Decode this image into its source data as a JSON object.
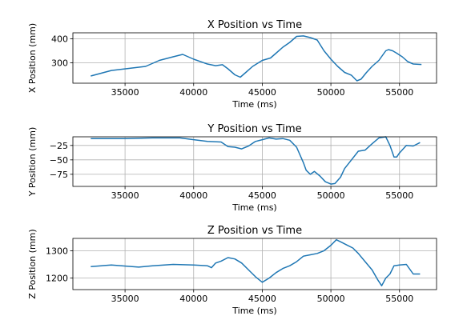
{
  "chart_data": [
    {
      "type": "line",
      "title": "X Position vs Time",
      "xlabel": "Time (ms)",
      "ylabel": "X Position (mm)",
      "xlim": [
        31200,
        57700
      ],
      "ylim": [
        215,
        425
      ],
      "grid": true,
      "xticks": [
        35000,
        40000,
        45000,
        50000,
        55000
      ],
      "yticks": [
        300,
        400
      ],
      "line_color": "#1f77b4",
      "series": [
        {
          "x": [
            32500,
            34000,
            36500,
            37500,
            38500,
            39200,
            40000,
            41000,
            41600,
            42100,
            42500,
            43000,
            43400,
            43800,
            44300,
            45000,
            45600,
            46000,
            46500,
            47000,
            47500,
            48000,
            48500,
            49000,
            49500,
            50000,
            50500,
            51000,
            51500,
            51900,
            52200,
            52600,
            53000,
            53500,
            54000,
            54200,
            54500,
            54800,
            55200,
            55600,
            56000,
            56600
          ],
          "y": [
            245,
            268,
            285,
            310,
            325,
            335,
            315,
            295,
            288,
            292,
            275,
            250,
            240,
            260,
            285,
            310,
            320,
            340,
            365,
            385,
            410,
            412,
            405,
            395,
            350,
            315,
            285,
            260,
            248,
            225,
            232,
            260,
            285,
            310,
            350,
            355,
            350,
            340,
            325,
            305,
            295,
            293
          ]
        }
      ]
    },
    {
      "type": "line",
      "title": "Y Position vs Time",
      "xlabel": "Time (ms)",
      "ylabel": "Y Position (mm)",
      "xlim": [
        31200,
        57700
      ],
      "ylim": [
        -96,
        -10
      ],
      "grid": true,
      "xticks": [
        35000,
        40000,
        45000,
        50000,
        55000
      ],
      "yticks": [
        -25,
        -50,
        -75
      ],
      "line_color": "#1f77b4",
      "series": [
        {
          "x": [
            32500,
            35000,
            37000,
            39000,
            40000,
            41000,
            42000,
            42500,
            43000,
            43500,
            44000,
            44500,
            45000,
            45500,
            46000,
            46500,
            47000,
            47500,
            48000,
            48200,
            48500,
            48800,
            49200,
            49600,
            50000,
            50300,
            50700,
            51000,
            51500,
            52000,
            52500,
            53000,
            53500,
            54000,
            54300,
            54600,
            54800,
            55000,
            55500,
            56000,
            56500
          ],
          "y": [
            -13,
            -13,
            -12,
            -12,
            -15,
            -18,
            -19,
            -27,
            -28,
            -31,
            -26,
            -18,
            -15,
            -12,
            -14,
            -13,
            -16,
            -28,
            -55,
            -68,
            -75,
            -70,
            -78,
            -88,
            -92,
            -91,
            -80,
            -65,
            -50,
            -35,
            -33,
            -22,
            -12,
            -10,
            -25,
            -45,
            -45,
            -38,
            -25,
            -26,
            -20
          ]
        }
      ]
    },
    {
      "type": "line",
      "title": "Z Position vs Time",
      "xlabel": "Time (ms)",
      "ylabel": "Z Position (mm)",
      "xlim": [
        31200,
        57700
      ],
      "ylim": [
        1158,
        1345
      ],
      "grid": true,
      "xticks": [
        35000,
        40000,
        45000,
        50000,
        55000
      ],
      "yticks": [
        1200,
        1300
      ],
      "line_color": "#1f77b4",
      "series": [
        {
          "x": [
            32500,
            34000,
            36000,
            37000,
            38500,
            40000,
            41000,
            41300,
            41600,
            42000,
            42500,
            43000,
            43500,
            44000,
            44500,
            45000,
            45500,
            46000,
            46500,
            47000,
            47500,
            48000,
            48500,
            49000,
            49500,
            50000,
            50400,
            50800,
            51200,
            51600,
            52000,
            52500,
            53000,
            53400,
            53700,
            54000,
            54300,
            54600,
            55000,
            55500,
            56000,
            56500
          ],
          "y": [
            1242,
            1248,
            1240,
            1245,
            1250,
            1248,
            1245,
            1238,
            1255,
            1262,
            1275,
            1270,
            1255,
            1230,
            1205,
            1185,
            1200,
            1220,
            1235,
            1245,
            1260,
            1280,
            1285,
            1290,
            1300,
            1320,
            1340,
            1330,
            1320,
            1310,
            1290,
            1260,
            1230,
            1195,
            1172,
            1200,
            1215,
            1245,
            1248,
            1250,
            1215,
            1215
          ]
        }
      ]
    }
  ]
}
